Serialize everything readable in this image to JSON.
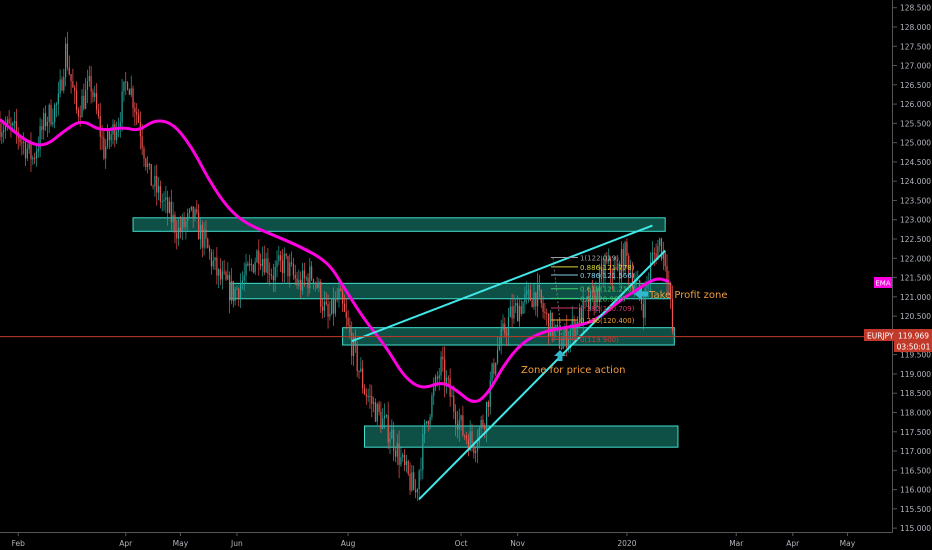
{
  "chart_data": {
    "type": "candlestick",
    "symbol": "EURJPY",
    "indicator_tag": "EMA",
    "last_price_label": "119.969",
    "countdown": "03:50:01",
    "ylim": [
      114.9,
      128.7
    ],
    "y_ticks": [
      "128.500",
      "128.000",
      "127.500",
      "127.000",
      "126.500",
      "126.000",
      "125.500",
      "125.000",
      "124.500",
      "124.000",
      "123.500",
      "123.000",
      "122.500",
      "122.000",
      "121.500",
      "121.000",
      "120.500",
      "120.000",
      "119.500",
      "119.000",
      "118.500",
      "118.000",
      "117.500",
      "117.000",
      "116.500",
      "116.000",
      "115.500",
      "115.000"
    ],
    "x_ticks": [
      {
        "label": "Feb",
        "day": 0
      },
      {
        "label": "Apr",
        "day": 59
      },
      {
        "label": "May",
        "day": 89
      },
      {
        "label": "Jun",
        "day": 120
      },
      {
        "label": "Aug",
        "day": 181
      },
      {
        "label": "Oct",
        "day": 243
      },
      {
        "label": "Nov",
        "day": 274
      },
      {
        "label": "2020",
        "day": 334
      },
      {
        "label": "Mar",
        "day": 394
      },
      {
        "label": "Apr",
        "day": 425
      },
      {
        "label": "May",
        "day": 455
      }
    ],
    "x_day_range": [
      -10,
      480
    ],
    "ema_series": [
      {
        "day": -10,
        "price": 125.6
      },
      {
        "day": 5,
        "price": 125.0
      },
      {
        "day": 15,
        "price": 124.9
      },
      {
        "day": 25,
        "price": 125.3
      },
      {
        "day": 35,
        "price": 125.6
      },
      {
        "day": 45,
        "price": 125.3
      },
      {
        "day": 58,
        "price": 125.4
      },
      {
        "day": 66,
        "price": 125.3
      },
      {
        "day": 75,
        "price": 125.6
      },
      {
        "day": 85,
        "price": 125.5
      },
      {
        "day": 95,
        "price": 124.9
      },
      {
        "day": 105,
        "price": 124.0
      },
      {
        "day": 115,
        "price": 123.3
      },
      {
        "day": 125,
        "price": 122.9
      },
      {
        "day": 140,
        "price": 122.6
      },
      {
        "day": 155,
        "price": 122.3
      },
      {
        "day": 170,
        "price": 121.9
      },
      {
        "day": 178,
        "price": 121.3
      },
      {
        "day": 190,
        "price": 120.4
      },
      {
        "day": 202,
        "price": 119.7
      },
      {
        "day": 212,
        "price": 118.9
      },
      {
        "day": 222,
        "price": 118.6
      },
      {
        "day": 232,
        "price": 118.8
      },
      {
        "day": 240,
        "price": 118.6
      },
      {
        "day": 250,
        "price": 118.2
      },
      {
        "day": 258,
        "price": 118.5
      },
      {
        "day": 266,
        "price": 119.2
      },
      {
        "day": 276,
        "price": 119.8
      },
      {
        "day": 288,
        "price": 120.1
      },
      {
        "day": 300,
        "price": 120.2
      },
      {
        "day": 312,
        "price": 120.3
      },
      {
        "day": 320,
        "price": 120.5
      },
      {
        "day": 330,
        "price": 120.9
      },
      {
        "day": 340,
        "price": 121.2
      },
      {
        "day": 350,
        "price": 121.5
      },
      {
        "day": 357,
        "price": 121.4
      }
    ],
    "price_path": [
      {
        "day": -10,
        "price": 125.5
      },
      {
        "day": 0,
        "price": 125.2
      },
      {
        "day": 8,
        "price": 124.6
      },
      {
        "day": 15,
        "price": 125.6
      },
      {
        "day": 22,
        "price": 126.0
      },
      {
        "day": 26,
        "price": 127.4
      },
      {
        "day": 32,
        "price": 125.8
      },
      {
        "day": 40,
        "price": 126.5
      },
      {
        "day": 47,
        "price": 124.8
      },
      {
        "day": 55,
        "price": 125.6
      },
      {
        "day": 60,
        "price": 126.7
      },
      {
        "day": 66,
        "price": 125.6
      },
      {
        "day": 72,
        "price": 124.1
      },
      {
        "day": 80,
        "price": 123.4
      },
      {
        "day": 88,
        "price": 122.7
      },
      {
        "day": 96,
        "price": 123.1
      },
      {
        "day": 104,
        "price": 122.2
      },
      {
        "day": 110,
        "price": 121.5
      },
      {
        "day": 118,
        "price": 121.1
      },
      {
        "day": 126,
        "price": 121.6
      },
      {
        "day": 132,
        "price": 122.2
      },
      {
        "day": 140,
        "price": 121.6
      },
      {
        "day": 146,
        "price": 121.9
      },
      {
        "day": 154,
        "price": 121.3
      },
      {
        "day": 162,
        "price": 121.6
      },
      {
        "day": 170,
        "price": 120.4
      },
      {
        "day": 176,
        "price": 121.0
      },
      {
        "day": 183,
        "price": 119.8
      },
      {
        "day": 190,
        "price": 118.6
      },
      {
        "day": 198,
        "price": 117.9
      },
      {
        "day": 205,
        "price": 117.4
      },
      {
        "day": 212,
        "price": 116.5
      },
      {
        "day": 218,
        "price": 115.9
      },
      {
        "day": 224,
        "price": 117.8
      },
      {
        "day": 232,
        "price": 119.2
      },
      {
        "day": 238,
        "price": 118.3
      },
      {
        "day": 244,
        "price": 117.5
      },
      {
        "day": 250,
        "price": 117.2
      },
      {
        "day": 256,
        "price": 117.9
      },
      {
        "day": 262,
        "price": 119.5
      },
      {
        "day": 270,
        "price": 120.5
      },
      {
        "day": 276,
        "price": 120.8
      },
      {
        "day": 284,
        "price": 121.1
      },
      {
        "day": 290,
        "price": 120.4
      },
      {
        "day": 298,
        "price": 119.8
      },
      {
        "day": 304,
        "price": 120.2
      },
      {
        "day": 310,
        "price": 120.6
      },
      {
        "day": 317,
        "price": 121.0
      },
      {
        "day": 322,
        "price": 121.8
      },
      {
        "day": 328,
        "price": 121.6
      },
      {
        "day": 333,
        "price": 122.1
      },
      {
        "day": 338,
        "price": 121.4
      },
      {
        "day": 343,
        "price": 120.8
      },
      {
        "day": 348,
        "price": 122.0
      },
      {
        "day": 352,
        "price": 122.4
      },
      {
        "day": 355,
        "price": 122.0
      },
      {
        "day": 357,
        "price": 121.3
      },
      {
        "day": 359,
        "price": 120.1
      }
    ],
    "zones": [
      {
        "day_start": 63,
        "day_end": 355,
        "price_low": 122.7,
        "price_high": 123.05
      },
      {
        "day_start": 116,
        "day_end": 358,
        "price_low": 120.95,
        "price_high": 121.35
      },
      {
        "day_start": 178,
        "day_end": 360,
        "price_low": 119.75,
        "price_high": 120.2
      },
      {
        "day_start": 190,
        "day_end": 362,
        "price_low": 117.1,
        "price_high": 117.65
      }
    ],
    "trendlines": [
      {
        "day1": 183,
        "price1": 119.85,
        "day2": 348,
        "price2": 122.85
      },
      {
        "day1": 220,
        "price1": 115.75,
        "day2": 355,
        "price2": 122.2
      }
    ],
    "fib_levels": [
      {
        "label": "1(122.019)",
        "price": 122.019,
        "color": "#9aa0a6"
      },
      {
        "label": "0.886(121.778)",
        "price": 121.778,
        "color": "#d6d63a"
      },
      {
        "label": "0.786(121.566)",
        "price": 121.566,
        "color": "#7fd0e8"
      },
      {
        "label": "0.618(121.210)",
        "price": 121.21,
        "color": "#3ad06a"
      },
      {
        "label": "0.5(120.960)",
        "price": 120.96,
        "color": "#3ad06a"
      },
      {
        "label": "0.382(120.709)",
        "price": 120.709,
        "color": "#d13a6a"
      },
      {
        "label": "0.236(120.400)",
        "price": 120.4,
        "color": "#f0a030"
      },
      {
        "label": "0(119.900)",
        "price": 119.9,
        "color": "#d13a3a"
      }
    ],
    "annotations": {
      "take_profit": "Take Profit zone",
      "price_action": "Zone for price action"
    },
    "colors": {
      "up": "#26a69a",
      "down": "#ef5350",
      "ema": "#ff00e0",
      "zone_fill": "#1a8f80",
      "zone_stroke": "#40e0d0",
      "trendline": "#40e8e8",
      "annotation": "#f39c3c",
      "arrow": "#30b8d0",
      "price_line": "#c0392b",
      "price_tag": "#c0392b",
      "axis_text": "#b2b5be",
      "background": "#000000"
    }
  }
}
